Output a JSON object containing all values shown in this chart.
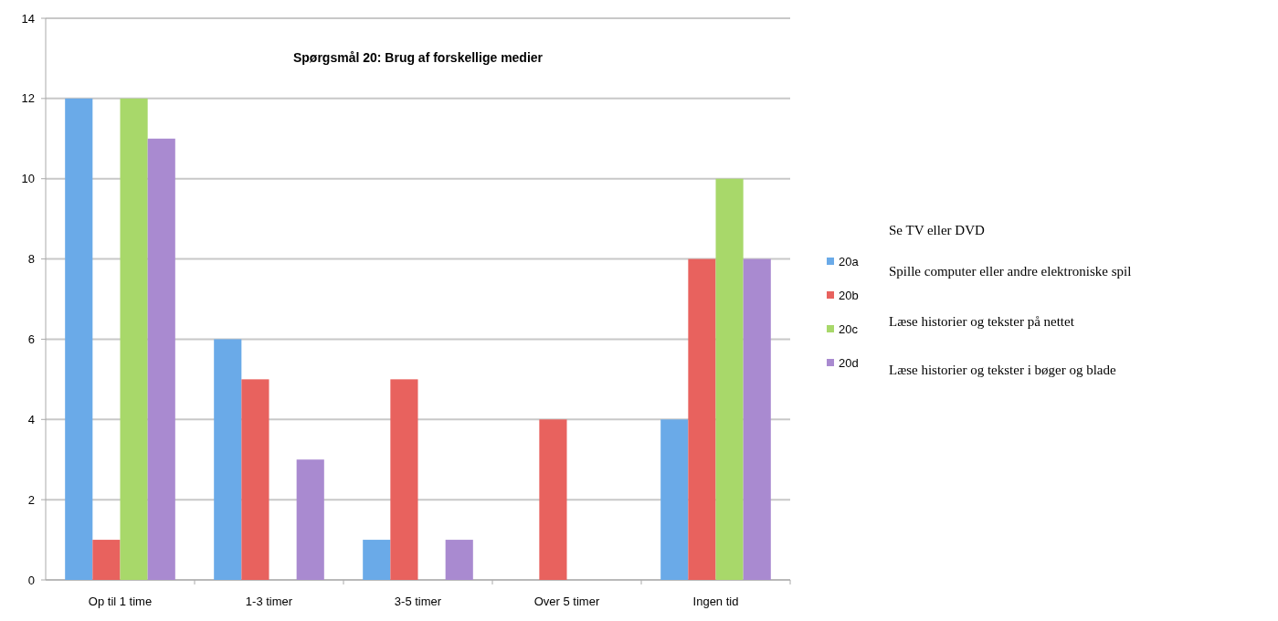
{
  "chart_data": {
    "type": "bar",
    "title": "Spørgsmål 20: Brug af forskellige medier",
    "categories": [
      "Op til 1 time",
      "1-3 timer",
      "3-5 timer",
      "Over 5 timer",
      "Ingen tid"
    ],
    "series": [
      {
        "name": "20a",
        "color": "#6aaae8",
        "values": [
          12,
          6,
          1,
          0,
          4
        ]
      },
      {
        "name": "20b",
        "color": "#e8625e",
        "values": [
          1,
          5,
          5,
          4,
          8
        ]
      },
      {
        "name": "20c",
        "color": "#a8d86a",
        "values": [
          12,
          0,
          0,
          0,
          10
        ]
      },
      {
        "name": "20d",
        "color": "#a98ad0",
        "values": [
          11,
          3,
          1,
          0,
          8
        ]
      }
    ],
    "ylim": [
      0,
      14
    ],
    "yticks": [
      0,
      2,
      4,
      6,
      8,
      10,
      12,
      14
    ],
    "grid": "y",
    "legend": "right",
    "annotations": [
      "Se TV eller DVD",
      "Spille computer eller andre elektroniske spil",
      "Læse historier og tekster på nettet",
      "Læse historier og tekster i bøger og blade"
    ]
  }
}
